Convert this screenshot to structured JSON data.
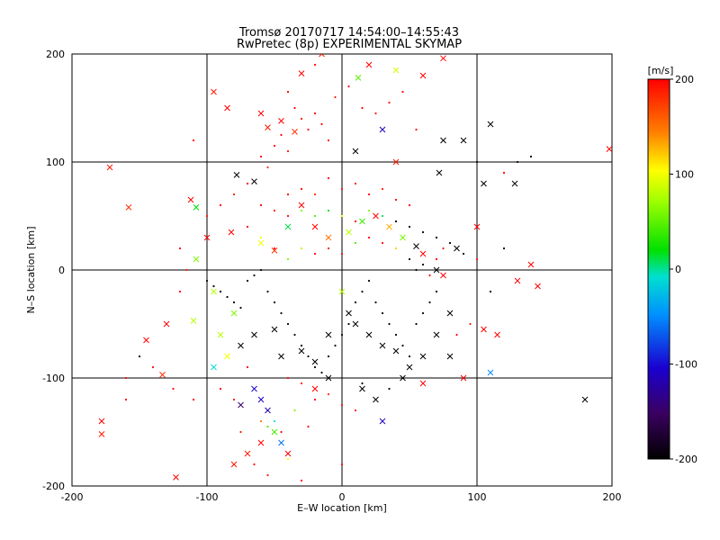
{
  "chart_data": {
    "type": "scatter",
    "title": "Tromsø 20170717 14:54:00–14:55:43",
    "subtitle": "RwPretec (8p) EXPERIMENTAL SKYMAP",
    "xlabel": "E–W location [km]",
    "ylabel": "N–S location [km]",
    "xlim": [
      -200,
      200
    ],
    "ylim": [
      -200,
      200
    ],
    "x_ticks": [
      -200,
      -100,
      0,
      100,
      200
    ],
    "y_ticks": [
      -200,
      -100,
      0,
      100,
      200
    ],
    "grid": true,
    "colorbar": {
      "label": "[m/s]",
      "range": [
        -200,
        200
      ],
      "ticks": [
        -200,
        -100,
        0,
        100,
        200
      ],
      "colormap": "rainbow (black-purple-blue-cyan-green-yellow-red)"
    },
    "series": [
      {
        "marker": "x",
        "points": [
          [
            -172,
            95,
            190
          ],
          [
            -158,
            58,
            180
          ],
          [
            -145,
            -65,
            200
          ],
          [
            -178,
            -140,
            200
          ],
          [
            -178,
            -152,
            190
          ],
          [
            -123,
            -192,
            200
          ],
          [
            -133,
            -97,
            180
          ],
          [
            -130,
            -50,
            200
          ],
          [
            -112,
            65,
            200
          ],
          [
            -108,
            58,
            20
          ],
          [
            -108,
            10,
            60
          ],
          [
            -110,
            -47,
            80
          ],
          [
            -95,
            -90,
            -10
          ],
          [
            -95,
            165,
            190
          ],
          [
            -85,
            150,
            200
          ],
          [
            -60,
            145,
            200
          ],
          [
            -55,
            132,
            190
          ],
          [
            -45,
            138,
            200
          ],
          [
            -35,
            128,
            180
          ],
          [
            -30,
            182,
            200
          ],
          [
            12,
            178,
            50
          ],
          [
            20,
            190,
            200
          ],
          [
            40,
            185,
            90
          ],
          [
            60,
            180,
            200
          ],
          [
            75,
            196,
            200
          ],
          [
            30,
            130,
            -110
          ],
          [
            10,
            110,
            -200
          ],
          [
            40,
            100,
            190
          ],
          [
            75,
            120,
            -200
          ],
          [
            90,
            120,
            -200
          ],
          [
            110,
            135,
            -200
          ],
          [
            105,
            80,
            -200
          ],
          [
            128,
            80,
            -200
          ],
          [
            198,
            112,
            200
          ],
          [
            72,
            90,
            -200
          ],
          [
            -78,
            88,
            -200
          ],
          [
            -65,
            82,
            -200
          ],
          [
            -82,
            35,
            200
          ],
          [
            -60,
            25,
            100
          ],
          [
            -50,
            18,
            180
          ],
          [
            -40,
            40,
            10
          ],
          [
            -30,
            60,
            200
          ],
          [
            -20,
            40,
            200
          ],
          [
            -10,
            30,
            150
          ],
          [
            5,
            35,
            80
          ],
          [
            15,
            45,
            40
          ],
          [
            25,
            50,
            200
          ],
          [
            35,
            40,
            130
          ],
          [
            45,
            30,
            60
          ],
          [
            55,
            22,
            -200
          ],
          [
            60,
            15,
            200
          ],
          [
            70,
            0,
            -200
          ],
          [
            75,
            -5,
            200
          ],
          [
            85,
            20,
            -200
          ],
          [
            100,
            40,
            200
          ],
          [
            115,
            -60,
            200
          ],
          [
            105,
            -55,
            200
          ],
          [
            110,
            -95,
            -50
          ],
          [
            140,
            5,
            200
          ],
          [
            130,
            -10,
            200
          ],
          [
            145,
            -15,
            200
          ],
          [
            180,
            -120,
            -200
          ],
          [
            -80,
            -40,
            60
          ],
          [
            -75,
            -70,
            -200
          ],
          [
            -65,
            -60,
            -200
          ],
          [
            -50,
            -55,
            -200
          ],
          [
            -45,
            -80,
            -200
          ],
          [
            -30,
            -75,
            -200
          ],
          [
            -20,
            -85,
            -200
          ],
          [
            -10,
            -60,
            -200
          ],
          [
            0,
            -20,
            80
          ],
          [
            5,
            -40,
            -200
          ],
          [
            10,
            -50,
            -200
          ],
          [
            20,
            -60,
            -200
          ],
          [
            30,
            -70,
            -200
          ],
          [
            40,
            -75,
            -200
          ],
          [
            50,
            -90,
            -200
          ],
          [
            60,
            -80,
            -200
          ],
          [
            70,
            -60,
            -200
          ],
          [
            80,
            -40,
            -200
          ],
          [
            -60,
            -120,
            -110
          ],
          [
            -55,
            -130,
            -120
          ],
          [
            -50,
            -150,
            40
          ],
          [
            -45,
            -160,
            -60
          ],
          [
            -40,
            -170,
            200
          ],
          [
            -60,
            -160,
            200
          ],
          [
            -70,
            -170,
            190
          ],
          [
            -80,
            -180,
            190
          ],
          [
            -75,
            -125,
            -150
          ],
          [
            -65,
            -110,
            -100
          ],
          [
            -20,
            -110,
            200
          ],
          [
            -10,
            -100,
            -200
          ],
          [
            15,
            -110,
            -200
          ],
          [
            25,
            -120,
            -200
          ],
          [
            30,
            -140,
            -110
          ],
          [
            45,
            -100,
            -200
          ],
          [
            60,
            -105,
            200
          ],
          [
            80,
            -80,
            -200
          ],
          [
            90,
            -100,
            200
          ],
          [
            -95,
            -20,
            80
          ],
          [
            -90,
            -60,
            80
          ],
          [
            -85,
            -80,
            100
          ],
          [
            -100,
            30,
            200
          ],
          [
            -15,
            200,
            190
          ]
        ]
      },
      {
        "marker": "dot",
        "points": [
          [
            -40,
            165,
            200
          ],
          [
            -35,
            150,
            200
          ],
          [
            -30,
            140,
            190
          ],
          [
            -25,
            130,
            200
          ],
          [
            -20,
            145,
            200
          ],
          [
            -45,
            125,
            200
          ],
          [
            -15,
            135,
            200
          ],
          [
            -10,
            120,
            190
          ],
          [
            -50,
            115,
            200
          ],
          [
            -40,
            110,
            190
          ],
          [
            -60,
            105,
            200
          ],
          [
            -55,
            95,
            180
          ],
          [
            -70,
            80,
            200
          ],
          [
            -80,
            70,
            190
          ],
          [
            -90,
            60,
            200
          ],
          [
            -100,
            50,
            200
          ],
          [
            -60,
            60,
            200
          ],
          [
            -50,
            55,
            190
          ],
          [
            -40,
            50,
            200
          ],
          [
            -30,
            55,
            60
          ],
          [
            -20,
            50,
            40
          ],
          [
            -10,
            55,
            20
          ],
          [
            0,
            50,
            100
          ],
          [
            10,
            45,
            200
          ],
          [
            20,
            55,
            60
          ],
          [
            30,
            50,
            10
          ],
          [
            40,
            45,
            -200
          ],
          [
            50,
            40,
            -200
          ],
          [
            60,
            35,
            -200
          ],
          [
            70,
            30,
            -200
          ],
          [
            80,
            25,
            -200
          ],
          [
            90,
            15,
            -200
          ],
          [
            20,
            70,
            200
          ],
          [
            10,
            80,
            190
          ],
          [
            0,
            75,
            200
          ],
          [
            -10,
            85,
            200
          ],
          [
            30,
            75,
            190
          ],
          [
            40,
            65,
            200
          ],
          [
            50,
            60,
            200
          ],
          [
            -20,
            70,
            180
          ],
          [
            -30,
            75,
            200
          ],
          [
            -40,
            70,
            200
          ],
          [
            -70,
            40,
            200
          ],
          [
            -60,
            30,
            100
          ],
          [
            -50,
            20,
            200
          ],
          [
            -40,
            10,
            60
          ],
          [
            -30,
            20,
            80
          ],
          [
            -20,
            15,
            200
          ],
          [
            -10,
            20,
            190
          ],
          [
            0,
            15,
            200
          ],
          [
            10,
            25,
            40
          ],
          [
            20,
            30,
            200
          ],
          [
            30,
            25,
            200
          ],
          [
            40,
            20,
            120
          ],
          [
            50,
            10,
            -200
          ],
          [
            60,
            5,
            -200
          ],
          [
            70,
            10,
            200
          ],
          [
            75,
            20,
            190
          ],
          [
            55,
            0,
            -200
          ],
          [
            65,
            -5,
            200
          ],
          [
            -100,
            -10,
            -200
          ],
          [
            -95,
            -15,
            -200
          ],
          [
            -90,
            -20,
            -200
          ],
          [
            -85,
            -25,
            -200
          ],
          [
            -80,
            -30,
            -200
          ],
          [
            -75,
            -35,
            -200
          ],
          [
            -70,
            -10,
            -200
          ],
          [
            -65,
            -5,
            -200
          ],
          [
            -60,
            0,
            -200
          ],
          [
            -55,
            -20,
            -200
          ],
          [
            -50,
            -30,
            -200
          ],
          [
            -45,
            -40,
            -200
          ],
          [
            -40,
            -50,
            -200
          ],
          [
            -35,
            -60,
            -200
          ],
          [
            -30,
            -70,
            -200
          ],
          [
            -25,
            -80,
            -200
          ],
          [
            -20,
            -90,
            -200
          ],
          [
            -15,
            -95,
            -200
          ],
          [
            -10,
            -80,
            -200
          ],
          [
            -5,
            -70,
            -200
          ],
          [
            0,
            -60,
            -200
          ],
          [
            5,
            -50,
            -200
          ],
          [
            10,
            -30,
            -200
          ],
          [
            15,
            -20,
            -200
          ],
          [
            20,
            -10,
            -200
          ],
          [
            25,
            -30,
            -200
          ],
          [
            30,
            -40,
            -200
          ],
          [
            35,
            -50,
            -200
          ],
          [
            40,
            -60,
            -200
          ],
          [
            45,
            -70,
            -200
          ],
          [
            50,
            -80,
            -200
          ],
          [
            55,
            -50,
            -200
          ],
          [
            60,
            -40,
            -200
          ],
          [
            65,
            -30,
            -200
          ],
          [
            70,
            -20,
            -200
          ],
          [
            -40,
            -100,
            200
          ],
          [
            -30,
            -105,
            190
          ],
          [
            -20,
            -120,
            200
          ],
          [
            -10,
            -115,
            180
          ],
          [
            0,
            -125,
            200
          ],
          [
            10,
            -130,
            190
          ],
          [
            -60,
            -140,
            150
          ],
          [
            -55,
            -145,
            40
          ],
          [
            -50,
            -140,
            -10
          ],
          [
            -45,
            -150,
            200
          ],
          [
            -70,
            -90,
            200
          ],
          [
            -80,
            -120,
            190
          ],
          [
            -90,
            -110,
            200
          ],
          [
            -110,
            -120,
            200
          ],
          [
            -125,
            -110,
            200
          ],
          [
            -140,
            -90,
            200
          ],
          [
            -150,
            -80,
            -200
          ],
          [
            -160,
            -120,
            200
          ],
          [
            85,
            -60,
            200
          ],
          [
            95,
            -50,
            190
          ],
          [
            100,
            10,
            200
          ],
          [
            110,
            -20,
            -200
          ],
          [
            120,
            20,
            -200
          ],
          [
            130,
            100,
            -200
          ],
          [
            140,
            105,
            -200
          ],
          [
            120,
            90,
            200
          ],
          [
            100,
            100,
            -200
          ],
          [
            -120,
            20,
            200
          ],
          [
            -115,
            0,
            190
          ],
          [
            -20,
            190,
            200
          ],
          [
            5,
            170,
            200
          ],
          [
            15,
            150,
            200
          ],
          [
            25,
            145,
            190
          ],
          [
            35,
            155,
            200
          ],
          [
            45,
            165,
            200
          ],
          [
            55,
            130,
            200
          ],
          [
            -5,
            160,
            190
          ],
          [
            -110,
            120,
            200
          ],
          [
            -120,
            -20,
            200
          ],
          [
            -160,
            -100,
            200
          ],
          [
            -75,
            -150,
            190
          ],
          [
            -65,
            -180,
            200
          ],
          [
            -55,
            -190,
            190
          ],
          [
            -30,
            -195,
            200
          ],
          [
            0,
            -180,
            200
          ],
          [
            -40,
            -175,
            100
          ],
          [
            -35,
            -130,
            60
          ],
          [
            -25,
            -145,
            200
          ],
          [
            15,
            -105,
            -200
          ],
          [
            35,
            -110,
            -200
          ]
        ]
      }
    ]
  }
}
